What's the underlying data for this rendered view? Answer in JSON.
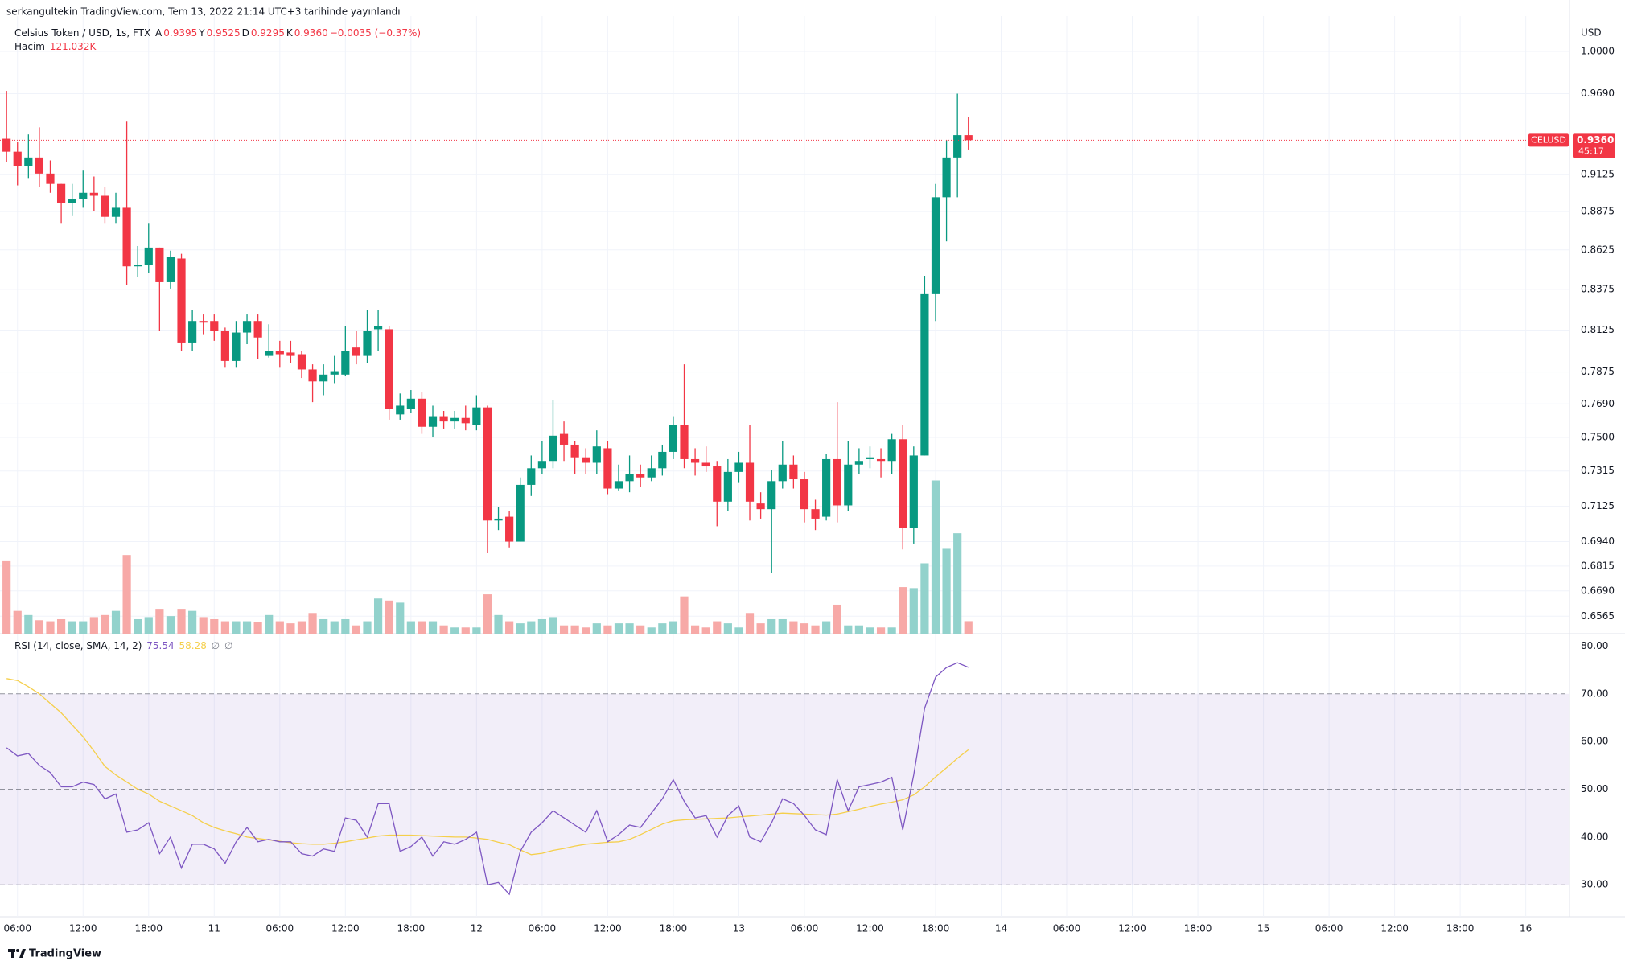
{
  "chart_data": {
    "type": "candlestick",
    "credit": "serkangultekin TradingView.com, Tem 13, 2022 21:14 UTC+3 tarihinde yayınlandı",
    "title": "Celsius Token / USD, 1s, FTX",
    "ohlc_legend": [
      {
        "key": "A",
        "text": "0.9395"
      },
      {
        "key": "Y",
        "text": "0.9525"
      },
      {
        "key": "D",
        "text": "0.9295"
      },
      {
        "key": "K",
        "text": "0.9360"
      }
    ],
    "change": "−0.0035 (−0.37%)",
    "currency": "USD",
    "log_scale": true,
    "grid": true,
    "up_color": "#089981",
    "down_color": "#f23645",
    "x": [
      5,
      6,
      7,
      8,
      9,
      10,
      11,
      12,
      13,
      14,
      15,
      16,
      17,
      18,
      19,
      20,
      21,
      22,
      23,
      24,
      25,
      26,
      27,
      28,
      29,
      30,
      31,
      32,
      33,
      34,
      35,
      36,
      37,
      38,
      39,
      40,
      41,
      42,
      43,
      44,
      45,
      46,
      47,
      48,
      49,
      50,
      51,
      52,
      53,
      54,
      55,
      56,
      57,
      58,
      59,
      60,
      61,
      62,
      63,
      64,
      65,
      66,
      67,
      68,
      69,
      70,
      71,
      72,
      73,
      74,
      75,
      76,
      77,
      78,
      79,
      80,
      81,
      82,
      83,
      84,
      85,
      86,
      87,
      88,
      89,
      90,
      91,
      92,
      93
    ],
    "open": [
      0.937,
      0.928,
      0.918,
      0.924,
      0.913,
      0.906,
      0.893,
      0.896,
      0.9,
      0.898,
      0.884,
      0.89,
      0.852,
      0.853,
      0.864,
      0.842,
      0.857,
      0.805,
      0.818,
      0.818,
      0.812,
      0.794,
      0.811,
      0.818,
      0.797,
      0.8,
      0.799,
      0.798,
      0.789,
      0.782,
      0.786,
      0.786,
      0.802,
      0.797,
      0.813,
      0.813,
      0.763,
      0.766,
      0.772,
      0.756,
      0.762,
      0.759,
      0.761,
      0.757,
      0.767,
      0.705,
      0.707,
      0.694,
      0.724,
      0.733,
      0.737,
      0.752,
      0.746,
      0.739,
      0.736,
      0.744,
      0.722,
      0.726,
      0.73,
      0.728,
      0.733,
      0.742,
      0.757,
      0.738,
      0.736,
      0.734,
      0.715,
      0.731,
      0.736,
      0.714,
      0.711,
      0.726,
      0.735,
      0.727,
      0.711,
      0.707,
      0.738,
      0.713,
      0.735,
      0.738,
      0.738,
      0.737,
      0.749,
      0.701,
      0.74,
      0.835,
      0.897,
      0.924,
      0.9395
    ],
    "high": [
      0.971,
      0.935,
      0.94,
      0.945,
      0.922,
      0.906,
      0.906,
      0.915,
      0.911,
      0.904,
      0.9,
      0.949,
      0.865,
      0.88,
      0.864,
      0.862,
      0.86,
      0.825,
      0.822,
      0.822,
      0.814,
      0.818,
      0.822,
      0.822,
      0.816,
      0.806,
      0.806,
      0.8,
      0.792,
      0.792,
      0.797,
      0.815,
      0.812,
      0.825,
      0.825,
      0.815,
      0.775,
      0.777,
      0.776,
      0.768,
      0.765,
      0.765,
      0.768,
      0.774,
      0.768,
      0.712,
      0.71,
      0.728,
      0.74,
      0.748,
      0.771,
      0.759,
      0.748,
      0.744,
      0.754,
      0.748,
      0.735,
      0.74,
      0.735,
      0.74,
      0.746,
      0.762,
      0.792,
      0.744,
      0.745,
      0.737,
      0.738,
      0.742,
      0.757,
      0.72,
      0.732,
      0.748,
      0.74,
      0.731,
      0.716,
      0.741,
      0.77,
      0.748,
      0.744,
      0.745,
      0.744,
      0.752,
      0.757,
      0.745,
      0.846,
      0.906,
      0.936,
      0.969,
      0.9525
    ],
    "low": [
      0.921,
      0.905,
      0.91,
      0.904,
      0.9,
      0.88,
      0.885,
      0.89,
      0.888,
      0.88,
      0.88,
      0.84,
      0.845,
      0.848,
      0.812,
      0.838,
      0.8,
      0.8,
      0.81,
      0.806,
      0.79,
      0.79,
      0.804,
      0.795,
      0.796,
      0.79,
      0.793,
      0.784,
      0.77,
      0.774,
      0.781,
      0.785,
      0.792,
      0.793,
      0.8,
      0.76,
      0.76,
      0.764,
      0.752,
      0.75,
      0.755,
      0.755,
      0.754,
      0.754,
      0.688,
      0.7,
      0.691,
      0.694,
      0.718,
      0.73,
      0.733,
      0.737,
      0.73,
      0.73,
      0.73,
      0.719,
      0.721,
      0.72,
      0.723,
      0.726,
      0.729,
      0.738,
      0.733,
      0.729,
      0.731,
      0.702,
      0.71,
      0.725,
      0.705,
      0.706,
      0.678,
      0.722,
      0.722,
      0.704,
      0.7,
      0.705,
      0.704,
      0.71,
      0.73,
      0.733,
      0.728,
      0.73,
      0.69,
      0.693,
      0.74,
      0.818,
      0.868,
      0.897,
      0.9295
    ],
    "close": [
      0.928,
      0.918,
      0.924,
      0.913,
      0.906,
      0.893,
      0.896,
      0.9,
      0.898,
      0.884,
      0.89,
      0.852,
      0.853,
      0.864,
      0.842,
      0.858,
      0.805,
      0.818,
      0.817,
      0.812,
      0.794,
      0.811,
      0.818,
      0.808,
      0.8,
      0.798,
      0.797,
      0.789,
      0.782,
      0.786,
      0.788,
      0.8,
      0.797,
      0.812,
      0.815,
      0.766,
      0.768,
      0.772,
      0.756,
      0.762,
      0.759,
      0.761,
      0.758,
      0.767,
      0.705,
      0.706,
      0.694,
      0.724,
      0.733,
      0.737,
      0.751,
      0.746,
      0.739,
      0.736,
      0.745,
      0.722,
      0.726,
      0.73,
      0.728,
      0.733,
      0.742,
      0.757,
      0.738,
      0.736,
      0.734,
      0.715,
      0.731,
      0.736,
      0.715,
      0.711,
      0.726,
      0.735,
      0.727,
      0.711,
      0.706,
      0.738,
      0.713,
      0.735,
      0.737,
      0.739,
      0.737,
      0.749,
      0.701,
      0.74,
      0.835,
      0.897,
      0.924,
      0.9395,
      0.936
    ],
    "xlim": [
      4.4,
      148
    ],
    "xticks": [
      {
        "value": 6,
        "label": "06:00"
      },
      {
        "value": 12,
        "label": "12:00"
      },
      {
        "value": 18,
        "label": "18:00"
      },
      {
        "value": 24,
        "label": "11"
      },
      {
        "value": 30,
        "label": "06:00"
      },
      {
        "value": 36,
        "label": "12:00"
      },
      {
        "value": 42,
        "label": "18:00"
      },
      {
        "value": 48,
        "label": "12"
      },
      {
        "value": 54,
        "label": "06:00"
      },
      {
        "value": 60,
        "label": "12:00"
      },
      {
        "value": 66,
        "label": "18:00"
      },
      {
        "value": 72,
        "label": "13"
      },
      {
        "value": 78,
        "label": "06:00"
      },
      {
        "value": 84,
        "label": "12:00"
      },
      {
        "value": 90,
        "label": "18:00"
      },
      {
        "value": 96,
        "label": "14"
      },
      {
        "value": 102,
        "label": "06:00"
      },
      {
        "value": 108,
        "label": "12:00"
      },
      {
        "value": 114,
        "label": "18:00"
      },
      {
        "value": 120,
        "label": "15"
      },
      {
        "value": 126,
        "label": "06:00"
      },
      {
        "value": 132,
        "label": "12:00"
      },
      {
        "value": 138,
        "label": "18:00"
      },
      {
        "value": 144,
        "label": "16"
      }
    ],
    "ylim": [
      0.648,
      1.023
    ],
    "yticks": [
      {
        "value": 1,
        "label": "1.0000"
      },
      {
        "value": 0.969,
        "label": "0.9690"
      },
      0.9125,
      0.8875,
      0.8625,
      0.8375,
      0.8125,
      0.7875,
      {
        "value": 0.769,
        "label": "0.7690"
      },
      {
        "value": 0.75,
        "label": "0.7500"
      },
      0.7315,
      0.7125,
      {
        "value": 0.694,
        "label": "0.6940"
      },
      0.6815,
      {
        "value": 0.669,
        "label": "0.6690"
      },
      0.6565
    ],
    "last_price": {
      "symbol": "CELUSD",
      "value": 0.936,
      "label": "0.9360",
      "countdown": "45:17"
    },
    "volume": {
      "name": "Hacim",
      "up_color": "#92d2cc",
      "down_color": "#f7a9a7",
      "ylim": [
        0,
        5920000
      ],
      "values": [
        700000,
        220000,
        180000,
        130000,
        120000,
        140000,
        120000,
        120000,
        160000,
        180000,
        220000,
        760000,
        140000,
        160000,
        240000,
        170000,
        240000,
        220000,
        160000,
        140000,
        120000,
        120000,
        120000,
        110000,
        180000,
        120000,
        100000,
        120000,
        200000,
        140000,
        120000,
        140000,
        80000,
        120000,
        340000,
        320000,
        300000,
        120000,
        120000,
        120000,
        80000,
        60000,
        60000,
        60000,
        380000,
        180000,
        120000,
        100000,
        120000,
        140000,
        160000,
        80000,
        80000,
        60000,
        100000,
        80000,
        100000,
        100000,
        80000,
        60000,
        100000,
        120000,
        360000,
        80000,
        60000,
        120000,
        100000,
        60000,
        200000,
        100000,
        140000,
        140000,
        120000,
        100000,
        80000,
        120000,
        280000,
        80000,
        80000,
        60000,
        60000,
        60000,
        450000,
        440000,
        680000,
        1480000,
        820000,
        970000,
        121032
      ],
      "value_labels": [
        null,
        null,
        null,
        null,
        null,
        null,
        null,
        null,
        null,
        null,
        null,
        null,
        null,
        null,
        null,
        null,
        null,
        null,
        null,
        null,
        null,
        null,
        null,
        null,
        null,
        null,
        null,
        null,
        null,
        null,
        null,
        null,
        null,
        null,
        null,
        null,
        null,
        null,
        null,
        null,
        null,
        null,
        null,
        null,
        null,
        null,
        null,
        null,
        null,
        null,
        null,
        null,
        null,
        null,
        null,
        null,
        null,
        null,
        null,
        null,
        null,
        null,
        null,
        null,
        null,
        null,
        null,
        null,
        null,
        null,
        null,
        null,
        null,
        null,
        null,
        null,
        null,
        null,
        null,
        null,
        null,
        null,
        null,
        null,
        null,
        null,
        null,
        null,
        "121.032K"
      ]
    },
    "rsi": {
      "name": "RSI (14, close, SMA, 14, 2)",
      "color": "#7e57c2",
      "values": [
        58.7,
        57,
        57.5,
        55,
        53.5,
        50.5,
        50.5,
        51.5,
        51,
        48,
        49,
        41,
        41.5,
        43,
        36.5,
        40,
        33.5,
        38.5,
        38.5,
        37.5,
        34.5,
        39,
        42,
        39,
        39.5,
        39,
        39,
        36.5,
        36,
        37.5,
        37,
        44,
        43.5,
        40,
        47,
        47,
        37,
        38,
        40,
        36,
        39,
        38.5,
        39.5,
        41,
        30,
        30.5,
        28,
        37,
        41,
        43,
        45.5,
        44,
        42.5,
        41,
        45.5,
        39,
        40.5,
        42.5,
        42,
        45,
        48,
        52,
        47.5,
        44,
        44.5,
        40,
        44.5,
        46.5,
        40,
        39,
        43,
        48,
        47,
        44.5,
        41.5,
        40.5,
        52,
        45.5,
        50.5,
        51,
        51.5,
        52.5,
        41.5,
        53,
        67,
        73.5,
        75.5,
        76.5,
        75.54
      ]
    },
    "rsi_sma": {
      "color": "#f5cf4b",
      "values": [
        73.2,
        72.8,
        71.5,
        70,
        68,
        66,
        63.5,
        61,
        58,
        54.8,
        53,
        51.5,
        50,
        49,
        47.5,
        46.5,
        45.5,
        44.5,
        43,
        42,
        41.3,
        40.7,
        40,
        39.7,
        39.4,
        39.1,
        38.8,
        38.6,
        38.5,
        38.5,
        38.7,
        39,
        39.4,
        39.8,
        40.2,
        40.4,
        40.4,
        40.4,
        40.3,
        40.2,
        40.1,
        40,
        40,
        39.8,
        39.5,
        38.9,
        38.4,
        37.3,
        36.3,
        36.6,
        37.2,
        37.6,
        38.1,
        38.5,
        38.7,
        38.9,
        39,
        39.5,
        40.5,
        41.6,
        42.7,
        43.4,
        43.6,
        43.7,
        43.8,
        43.9,
        44,
        44.2,
        44.4,
        44.6,
        44.8,
        45,
        44.9,
        44.8,
        44.7,
        44.6,
        44.8,
        45.3,
        45.8,
        46.4,
        46.9,
        47.3,
        47.8,
        48.8,
        50.5,
        52.6,
        54.5,
        56.5,
        58.28
      ]
    },
    "rsi_extra": [
      "∅",
      "∅"
    ],
    "rsi_levels": [
      30,
      50,
      70
    ],
    "rsi_band_color": "#7e57c2",
    "rsi_ylim": [
      23.3,
      82.6
    ],
    "rsi_yticks": [
      {
        "value": 80,
        "label": "80.00"
      },
      {
        "value": 70,
        "label": "70.00"
      },
      {
        "value": 60,
        "label": "60.00"
      },
      {
        "value": 50,
        "label": "50.00"
      },
      {
        "value": 40,
        "label": "40.00"
      },
      {
        "value": 30,
        "label": "30.00"
      }
    ]
  },
  "footer": {
    "brand": "TradingView"
  }
}
